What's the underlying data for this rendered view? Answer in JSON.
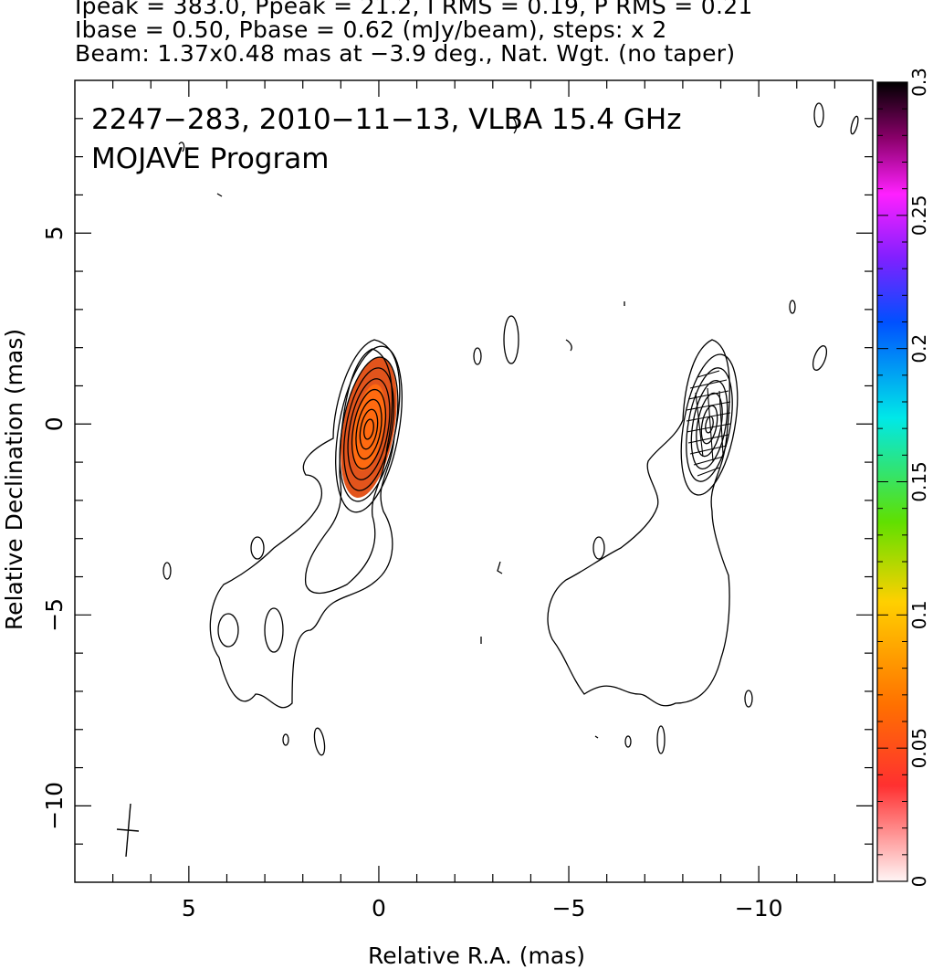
{
  "header": {
    "line1": "Ipeak = 383.0, Ppeak = 21.2, I RMS = 0.19, P RMS = 0.21",
    "line2": "Ibase = 0.50, Pbase = 0.62 (mJy/beam), steps: x 2",
    "line3": "Beam: 1.37x0.48 mas at −3.9 deg., Nat. Wgt. (no taper)"
  },
  "plot_title": {
    "line1": "2247−283, 2010−11−13, VLBA 15.4 GHz",
    "line2": "MOJAVE Program"
  },
  "chart_data": {
    "type": "heatmap",
    "xlabel": "Relative R.A. (mas)",
    "ylabel": "Relative Declination (mas)",
    "xlim": [
      8,
      -13
    ],
    "ylim": [
      -12,
      9
    ],
    "x_ticks": [
      5,
      0,
      -5,
      -10
    ],
    "x_tick_labels": [
      "5",
      "0",
      "−5",
      "−10"
    ],
    "y_ticks": [
      5,
      0,
      -5,
      -10
    ],
    "y_tick_labels": [
      "5",
      "0",
      "−5",
      "−10"
    ],
    "colorbar": {
      "range": [
        0,
        0.3
      ],
      "ticks": [
        0,
        0.05,
        0.1,
        0.15,
        0.2,
        0.25,
        0.3
      ],
      "tick_labels": [
        "0",
        "0.05",
        "0.1",
        "0.15",
        "0.2",
        "0.25",
        "0.3"
      ],
      "colors": [
        "#fff0f0",
        "#ff4040",
        "#ff8000",
        "#ffff00",
        "#00e000",
        "#00ffff",
        "#0060ff",
        "#8000ff",
        "#ff00ff",
        "#000000"
      ]
    },
    "panels": [
      {
        "name": "total-intensity",
        "center_ra": 0,
        "center_dec": 0,
        "peak_mJy": 383.0,
        "base_mJy": 0.5,
        "contour_step": 2
      },
      {
        "name": "polarization",
        "center_ra": -9,
        "center_dec": 0,
        "peak_mJy": 21.2,
        "base_mJy": 0.62,
        "contour_step": 2
      }
    ],
    "beam": {
      "major_mas": 1.37,
      "minor_mas": 0.48,
      "pa_deg": -3.9
    },
    "grid": false
  }
}
